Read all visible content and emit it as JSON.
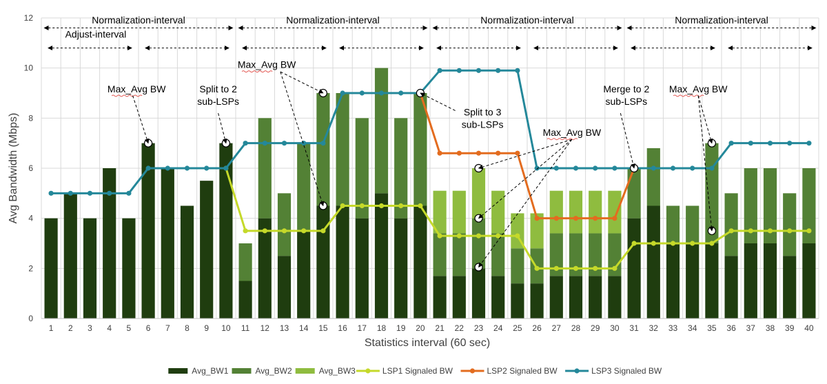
{
  "chart_data": {
    "type": "bar",
    "xlabel": "Statistics interval (60 sec)",
    "ylabel": "Avg Bandwidth (Mbps)",
    "ylim": [
      0,
      12
    ],
    "yticks": [
      0,
      2,
      4,
      6,
      8,
      10,
      12
    ],
    "categories": [
      "1",
      "2",
      "3",
      "4",
      "5",
      "6",
      "7",
      "8",
      "9",
      "10",
      "11",
      "12",
      "13",
      "14",
      "15",
      "16",
      "17",
      "18",
      "19",
      "20",
      "21",
      "22",
      "23",
      "24",
      "25",
      "26",
      "27",
      "28",
      "29",
      "30",
      "31",
      "32",
      "33",
      "34",
      "35",
      "36",
      "37",
      "38",
      "39",
      "40"
    ],
    "stacked_bars": [
      {
        "name": "Avg_BW1",
        "color": "#1f3d0f",
        "values": [
          4,
          5,
          4,
          6,
          4,
          7,
          6,
          4.5,
          5.5,
          7,
          1.5,
          4,
          2.5,
          3.5,
          4.5,
          4.5,
          4,
          5,
          4,
          4.5,
          1.7,
          1.7,
          2,
          1.7,
          1.4,
          1.4,
          1.7,
          1.7,
          1.7,
          1.7,
          4,
          4.5,
          3,
          3,
          3,
          2.5,
          3,
          3,
          2.5,
          3
        ]
      },
      {
        "name": "Avg_BW2",
        "color": "#538135",
        "values": [
          0,
          0,
          0,
          0,
          0,
          0,
          0,
          0,
          0,
          0,
          1.5,
          4,
          2.5,
          3.5,
          4.5,
          4.5,
          4,
          5,
          4,
          4.5,
          1.7,
          1.7,
          2,
          1.7,
          1.4,
          1.4,
          1.7,
          1.7,
          1.7,
          1.7,
          2,
          2.3,
          1.5,
          1.5,
          4,
          2.5,
          3,
          3,
          2.5,
          3
        ]
      },
      {
        "name": "Avg_BW3",
        "color": "#8fbc3f",
        "values": [
          0,
          0,
          0,
          0,
          0,
          0,
          0,
          0,
          0,
          0,
          0,
          0,
          0,
          0,
          0,
          0,
          0,
          0,
          0,
          0,
          1.7,
          1.7,
          2,
          1.7,
          1.4,
          1.4,
          1.7,
          1.7,
          1.7,
          1.7,
          0,
          0,
          0,
          0,
          0,
          0,
          0,
          0,
          0,
          0
        ]
      }
    ],
    "lines": [
      {
        "name": "LSP1 Signaled BW",
        "color": "#c5d92a",
        "x": [
          10,
          11,
          12,
          13,
          14,
          15,
          16,
          17,
          18,
          19,
          20,
          21,
          22,
          23,
          24,
          25,
          26,
          27,
          28,
          29,
          30,
          31,
          32,
          33,
          34,
          35,
          36,
          37,
          38,
          39,
          40
        ],
        "values": [
          6,
          3.5,
          3.5,
          3.5,
          3.5,
          3.5,
          4.5,
          4.5,
          4.5,
          4.5,
          4.5,
          3.3,
          3.3,
          3.3,
          3.3,
          3.3,
          2,
          2,
          2,
          2,
          2,
          3,
          3,
          3,
          3,
          3,
          3.5,
          3.5,
          3.5,
          3.5,
          3.5
        ]
      },
      {
        "name": "LSP2 Signaled BW",
        "color": "#e36c1f",
        "x": [
          20,
          21,
          22,
          23,
          24,
          25,
          26,
          27,
          28,
          29,
          30,
          31
        ],
        "values": [
          9,
          6.6,
          6.6,
          6.6,
          6.6,
          6.6,
          4,
          4,
          4,
          4,
          4,
          6
        ]
      },
      {
        "name": "LSP3 Signaled BW",
        "color": "#24889a",
        "x": [
          1,
          2,
          3,
          4,
          5,
          6,
          7,
          8,
          9,
          10,
          11,
          12,
          13,
          14,
          15,
          16,
          17,
          18,
          19,
          20,
          21,
          22,
          23,
          24,
          25,
          26,
          27,
          28,
          29,
          30,
          31,
          32,
          33,
          34,
          35,
          36,
          37,
          38,
          39,
          40
        ],
        "values": [
          5,
          5,
          5,
          5,
          5,
          6,
          6,
          6,
          6,
          6,
          7,
          7,
          7,
          7,
          7,
          9,
          9,
          9,
          9,
          9,
          9.9,
          9.9,
          9.9,
          9.9,
          9.9,
          6,
          6,
          6,
          6,
          6,
          6,
          6,
          6,
          6,
          6,
          7,
          7,
          7,
          7,
          7
        ]
      }
    ],
    "markers": [
      {
        "x": 6,
        "y": 7
      },
      {
        "x": 10,
        "y": 7
      },
      {
        "x": 15,
        "y": 9
      },
      {
        "x": 15,
        "y": 4.5
      },
      {
        "x": 20,
        "y": 9
      },
      {
        "x": 23,
        "y": 6
      },
      {
        "x": 23,
        "y": 4
      },
      {
        "x": 23,
        "y": 2.05
      },
      {
        "x": 31,
        "y": 6
      },
      {
        "x": 35,
        "y": 7
      },
      {
        "x": 35,
        "y": 3.5
      }
    ],
    "normalization_intervals": [
      [
        1,
        10
      ],
      [
        11,
        20
      ],
      [
        21,
        30
      ],
      [
        31,
        40
      ]
    ],
    "normalization_label": "Normalization-interval",
    "adjust_label": "Adjust-interval",
    "adjust_intervals": [
      [
        1,
        5
      ],
      [
        6,
        10
      ],
      [
        11,
        15
      ],
      [
        16,
        20
      ],
      [
        21,
        25
      ],
      [
        26,
        30
      ],
      [
        31,
        35
      ],
      [
        36,
        40
      ]
    ],
    "annotations": [
      {
        "id": "adjust",
        "lines": [
          "Adjust-interval"
        ],
        "x": 3.3,
        "y": 11.22,
        "anchor": "middle"
      },
      {
        "id": "max1",
        "lines": [
          "Max_Avg BW"
        ],
        "x": 5.4,
        "y": 9.03,
        "anchor": "middle",
        "underline": true,
        "target": {
          "x": 6,
          "y": 7
        },
        "from": {
          "x": 5.2,
          "y": 8.9
        }
      },
      {
        "id": "split2",
        "lines": [
          "Split to 2",
          "sub-LSPs"
        ],
        "x": 9.6,
        "y": 9.03,
        "anchor": "middle",
        "target": {
          "x": 10,
          "y": 7
        },
        "from": {
          "x": 9.6,
          "y": 8.2
        }
      },
      {
        "id": "max2",
        "lines": [
          "Max_Avg BW"
        ],
        "x": 12.1,
        "y": 10.0,
        "anchor": "middle",
        "underline": true,
        "targets": [
          {
            "x": 15,
            "y": 9
          },
          {
            "x": 15,
            "y": 4.5
          }
        ],
        "from": {
          "x": 12.8,
          "y": 9.85
        }
      },
      {
        "id": "split3",
        "lines": [
          "Split to 3",
          "sub-LSPs"
        ],
        "x": 23.2,
        "y": 8.1,
        "anchor": "middle",
        "target": {
          "x": 20,
          "y": 9
        },
        "from": {
          "x": 21.8,
          "y": 8.3
        }
      },
      {
        "id": "max3",
        "lines": [
          "Max_Avg BW"
        ],
        "x": 27.8,
        "y": 7.3,
        "anchor": "middle",
        "underline": true,
        "targets": [
          {
            "x": 23,
            "y": 6
          },
          {
            "x": 23,
            "y": 4
          },
          {
            "x": 23,
            "y": 2.05
          }
        ],
        "from": {
          "x": 27.8,
          "y": 7.15
        }
      },
      {
        "id": "merge2",
        "lines": [
          "Merge to 2",
          "sub-LSPs"
        ],
        "x": 30.6,
        "y": 9.03,
        "anchor": "middle",
        "target": {
          "x": 31,
          "y": 6
        },
        "from": {
          "x": 30.3,
          "y": 8.2
        }
      },
      {
        "id": "max4",
        "lines": [
          "Max_Avg BW"
        ],
        "x": 34.3,
        "y": 9.03,
        "anchor": "middle",
        "underline": true,
        "targets": [
          {
            "x": 35,
            "y": 7
          },
          {
            "x": 35,
            "y": 3.5
          }
        ],
        "from": {
          "x": 34.3,
          "y": 8.9
        }
      }
    ],
    "legend": [
      "Avg_BW1",
      "Avg_BW2",
      "Avg_BW3",
      "LSP1 Signaled BW",
      "LSP2 Signaled BW",
      "LSP3 Signaled BW"
    ],
    "legend_position": "bottom",
    "grid": "vertical-and-horizontal"
  }
}
